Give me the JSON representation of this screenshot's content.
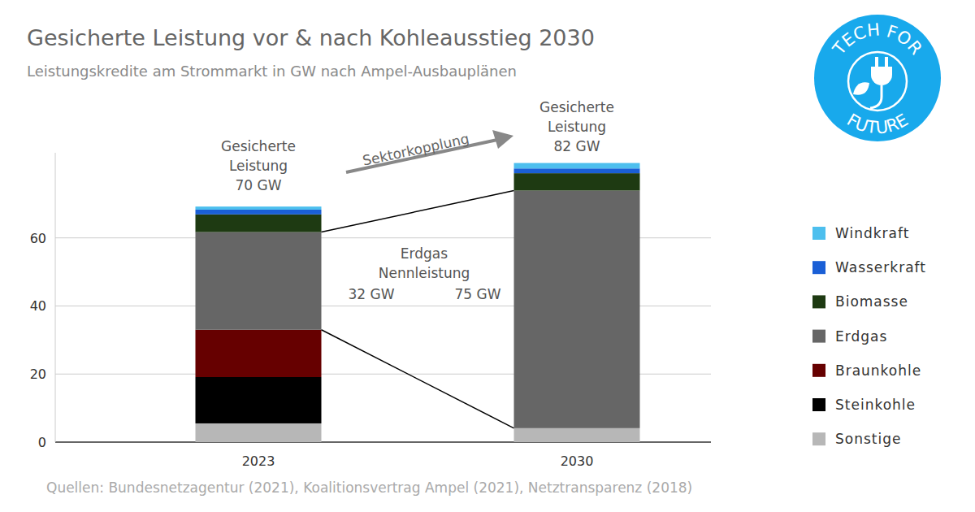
{
  "chart_data": {
    "type": "bar",
    "stacked": true,
    "grid": true,
    "legend": "right",
    "title": "Gesicherte Leistung vor & nach Kohleausstieg 2030",
    "subtitle": "Leistungskredite am Strommarkt in GW nach Ampel-Ausbauplänen",
    "categories": [
      "2023",
      "2030"
    ],
    "series": [
      {
        "name": "Sonstige",
        "color": "#b7b7b7",
        "values": [
          5.5,
          4.1
        ]
      },
      {
        "name": "Steinkohle",
        "color": "#000000",
        "values": [
          13.6,
          0
        ]
      },
      {
        "name": "Braunkohle",
        "color": "#660000",
        "values": [
          13.9,
          0
        ]
      },
      {
        "name": "Erdgas",
        "color": "#666666",
        "values": [
          28.7,
          69.8
        ]
      },
      {
        "name": "Biomasse",
        "color": "#1e3a12",
        "values": [
          5.2,
          5.1
        ]
      },
      {
        "name": "Wasserkraft",
        "color": "#1a5fd6",
        "values": [
          1.4,
          1.4
        ]
      },
      {
        "name": "Windkraft",
        "color": "#4dbfee",
        "values": [
          0.9,
          1.6
        ]
      }
    ],
    "ylim": [
      0,
      85
    ],
    "yticks": [
      0,
      20,
      40,
      60
    ],
    "annotations": [
      {
        "text": [
          "Gesicherte",
          "Leistung",
          "70 GW"
        ]
      },
      {
        "text": [
          "Gesicherte",
          "Leistung",
          "82 GW"
        ]
      },
      {
        "text": [
          "Sektorkopplung"
        ]
      },
      {
        "text": [
          "Erdgas",
          "Nennleistung"
        ]
      },
      {
        "text": [
          "32 GW"
        ]
      },
      {
        "text": [
          "75 GW"
        ]
      }
    ],
    "source": "Quellen: Bundesnetzagentur (2021), Koalitionsvertrag Ampel (2021), Netztransparenz (2018)",
    "logo": [
      "TECH FOR",
      "FUTURE"
    ]
  }
}
